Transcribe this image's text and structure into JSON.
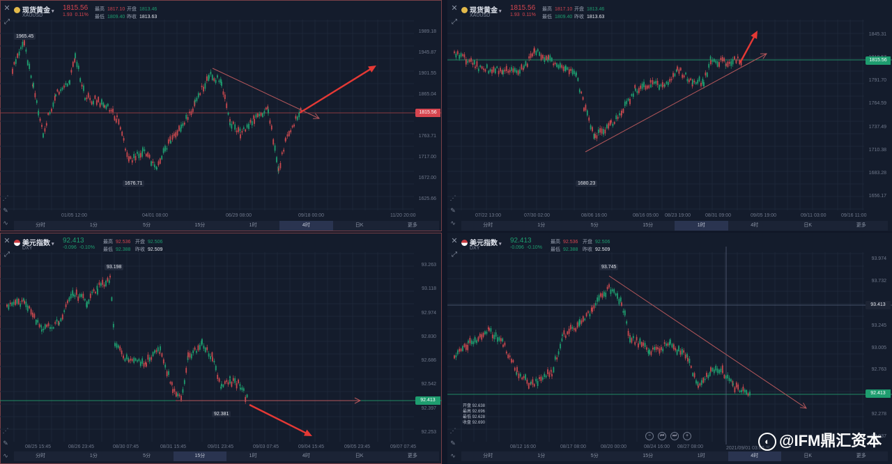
{
  "timeframes": [
    "分时",
    "1分",
    "5分",
    "15分",
    "1时",
    "4时",
    "日K",
    "更多"
  ],
  "labels": {
    "high": "最高",
    "open": "开盘",
    "low": "最低",
    "prev_close": "昨收"
  },
  "colors": {
    "up": "#d6454f",
    "down": "#1e9d6f"
  },
  "panels": [
    {
      "name": "现货黄金",
      "code": "XAUUSD",
      "icon": "gold-coin-icon",
      "price": "1815.56",
      "change": "1.93",
      "change_pct": "0.11%",
      "high": "1817.10",
      "open": "1813.46",
      "low": "1809.40",
      "prev_close": "1813.63",
      "y_ticks": [
        "1989.18",
        "1945.87",
        "1901.55",
        "1865.04",
        "1817.19",
        "1763.71",
        "1717.00",
        "1672.00",
        "1625.66"
      ],
      "price_tag": "1815.56",
      "x_ticks": [
        "01/05 12:00",
        "04/01 08:00",
        "06/29 08:00",
        "09/18 00:00",
        "11/20 20:00"
      ],
      "high_label": "1965.45",
      "low_label": "1676.71",
      "active_tf": "4时"
    },
    {
      "name": "现货黄金",
      "code": "XAUUSD",
      "icon": "gold-coin-icon",
      "price": "1815.56",
      "change": "1.93",
      "change_pct": "0.11%",
      "high": "1817.10",
      "open": "1813.46",
      "low": "1809.40",
      "prev_close": "1813.63",
      "y_ticks": [
        "1845.31",
        "1818.57",
        "1791.70",
        "1764.59",
        "1737.49",
        "1710.38",
        "1683.28",
        "1656.17"
      ],
      "price_tag": "1815.56",
      "x_ticks": [
        "07/22 13:00",
        "07/30 02:00",
        "08/06 16:00",
        "08/16 05:00",
        "08/23 19:00",
        "08/31 09:00",
        "09/05 19:00",
        "09/11 03:00",
        "09/16 11:00"
      ],
      "low_label": "1680.23",
      "active_tf": "1时"
    },
    {
      "name": "美元指数",
      "code": "DXY",
      "icon": "us-flag-icon",
      "price": "92.413",
      "change": "-0.096",
      "change_pct": "-0.10%",
      "high": "92.536",
      "open": "92.506",
      "low": "92.388",
      "prev_close": "92.509",
      "y_ticks": [
        "93.263",
        "93.118",
        "92.974",
        "92.830",
        "92.686",
        "92.542",
        "92.397",
        "92.253"
      ],
      "price_tag": "92.413",
      "x_ticks": [
        "08/25 15:45",
        "08/26 23:45",
        "08/30 07:45",
        "08/31 15:45",
        "09/01 23:45",
        "09/03 07:45",
        "09/04 15:45",
        "09/05 23:45",
        "09/07 07:45"
      ],
      "high_label": "93.198",
      "low_label": "92.381",
      "active_tf": "15分"
    },
    {
      "name": "美元指数",
      "code": "DXY",
      "icon": "us-flag-icon",
      "price": "92.413",
      "change": "-0.096",
      "change_pct": "-0.10%",
      "high": "92.536",
      "open": "92.506",
      "low": "92.388",
      "prev_close": "92.509",
      "y_ticks": [
        "93.974",
        "93.732",
        "93.490",
        "93.245",
        "93.005",
        "92.763",
        "92.521",
        "92.278",
        "92.037"
      ],
      "price_tag": "92.413",
      "cursor_tag": "93.413",
      "x_ticks": [
        "08/12 16:00",
        "08/17 08:00",
        "08/20 00:00",
        "08/24 16:00",
        "08/27 08:00",
        "2021/09/01 03:00 三"
      ],
      "high_label": "93.745",
      "active_tf": "4时",
      "ohlc": [
        {
          "k": "开盘",
          "v": "92.638"
        },
        {
          "k": "最高",
          "v": "92.696"
        },
        {
          "k": "最低",
          "v": "92.628"
        },
        {
          "k": "收盘",
          "v": "92.690"
        }
      ]
    }
  ],
  "watermark": "@IFM鼎汇资本"
}
